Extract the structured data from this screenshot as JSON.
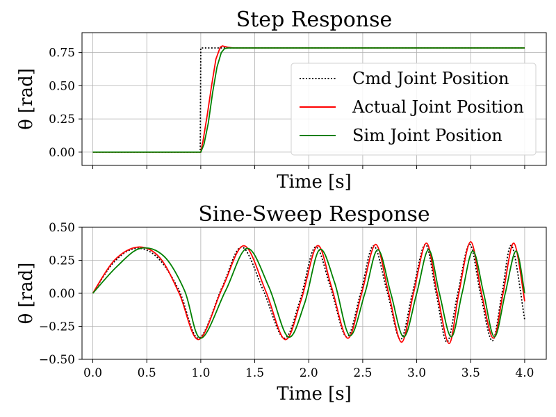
{
  "chart_data": [
    {
      "type": "line",
      "title": "Step Response",
      "xlabel": "Time [s]",
      "ylabel": "θ [rad]",
      "xlim": [
        -0.1,
        4.2
      ],
      "ylim": [
        -0.1,
        0.9
      ],
      "xticks": [
        0.0,
        0.5,
        1.0,
        1.5,
        2.0,
        2.5,
        3.0,
        3.5,
        4.0
      ],
      "xtick_labels_shown": false,
      "yticks": [
        0.0,
        0.25,
        0.5,
        0.75
      ],
      "ytick_labels": [
        "0.00",
        "0.25",
        "0.50",
        "0.75"
      ],
      "grid": true,
      "legend": "center-right",
      "series": [
        {
          "name": "Cmd Joint Position",
          "color": "#000000",
          "style": "dotted",
          "x": [
            0.0,
            0.995,
            1.0,
            4.0
          ],
          "y": [
            0.0,
            0.0,
            0.785,
            0.785
          ]
        },
        {
          "name": "Actual Joint Position",
          "color": "#ff0000",
          "style": "solid",
          "x": [
            0.0,
            1.0,
            1.02,
            1.06,
            1.1,
            1.14,
            1.18,
            1.2,
            1.25,
            1.3,
            1.4,
            4.0
          ],
          "y": [
            0.0,
            0.0,
            0.08,
            0.28,
            0.5,
            0.7,
            0.79,
            0.8,
            0.79,
            0.785,
            0.785,
            0.785
          ]
        },
        {
          "name": "Sim Joint Position",
          "color": "#008000",
          "style": "solid",
          "x": [
            0.0,
            1.0,
            1.03,
            1.07,
            1.11,
            1.15,
            1.19,
            1.22,
            1.25,
            1.3,
            4.0
          ],
          "y": [
            0.0,
            0.0,
            0.06,
            0.22,
            0.45,
            0.64,
            0.75,
            0.78,
            0.785,
            0.785,
            0.785
          ]
        }
      ]
    },
    {
      "type": "line",
      "title": "Sine-Sweep Response",
      "xlabel": "Time [s]",
      "ylabel": "θ [rad]",
      "xlim": [
        -0.1,
        4.2
      ],
      "ylim": [
        -0.5,
        0.5
      ],
      "xticks": [
        0.0,
        0.5,
        1.0,
        1.5,
        2.0,
        2.5,
        3.0,
        3.5,
        4.0
      ],
      "xtick_labels": [
        "0.0",
        "0.5",
        "1.0",
        "1.5",
        "2.0",
        "2.5",
        "3.0",
        "3.5",
        "4.0"
      ],
      "yticks": [
        -0.5,
        -0.25,
        0.0,
        0.25,
        0.5
      ],
      "ytick_labels": [
        "−0.50",
        "−0.25",
        "0.00",
        "0.25",
        "0.50"
      ],
      "grid": true,
      "legend": "none",
      "series": [
        {
          "name": "Cmd Joint Position",
          "color": "#000000",
          "style": "dotted",
          "x": [
            0.0,
            0.2,
            0.4,
            0.6,
            0.8,
            0.98,
            1.2,
            1.38,
            1.58,
            1.77,
            1.92,
            2.06,
            2.2,
            2.35,
            2.48,
            2.6,
            2.73,
            2.85,
            2.96,
            3.08,
            3.18,
            3.28,
            3.38,
            3.49,
            3.59,
            3.7,
            3.79,
            3.88,
            4.0
          ],
          "y": [
            0.0,
            0.24,
            0.34,
            0.27,
            0.02,
            -0.34,
            0.05,
            0.35,
            0.02,
            -0.34,
            -0.05,
            0.35,
            0.05,
            -0.33,
            0.0,
            0.36,
            0.0,
            -0.35,
            0.0,
            0.37,
            0.0,
            -0.37,
            0.0,
            0.37,
            0.0,
            -0.36,
            0.0,
            0.36,
            -0.2
          ]
        },
        {
          "name": "Actual Joint Position",
          "color": "#ff0000",
          "style": "solid",
          "x": [
            0.0,
            0.2,
            0.42,
            0.62,
            0.8,
            0.98,
            1.2,
            1.4,
            1.6,
            1.78,
            1.93,
            2.08,
            2.21,
            2.36,
            2.49,
            2.62,
            2.74,
            2.86,
            2.97,
            3.09,
            3.19,
            3.3,
            3.39,
            3.5,
            3.6,
            3.71,
            3.8,
            3.9,
            4.0
          ],
          "y": [
            0.0,
            0.25,
            0.35,
            0.27,
            0.0,
            -0.35,
            0.04,
            0.36,
            0.02,
            -0.35,
            -0.05,
            0.36,
            0.05,
            -0.34,
            0.0,
            0.37,
            0.0,
            -0.37,
            0.0,
            0.38,
            0.0,
            -0.38,
            0.0,
            0.39,
            0.0,
            -0.34,
            0.0,
            0.38,
            -0.06
          ]
        },
        {
          "name": "Sim Joint Position",
          "color": "#008000",
          "style": "solid",
          "x": [
            0.0,
            0.22,
            0.44,
            0.66,
            0.85,
            1.0,
            1.23,
            1.43,
            1.63,
            1.81,
            1.96,
            2.1,
            2.24,
            2.38,
            2.52,
            2.64,
            2.76,
            2.88,
            3.0,
            3.11,
            3.21,
            3.32,
            3.42,
            3.52,
            3.62,
            3.72,
            3.82,
            3.92,
            4.0
          ],
          "y": [
            0.0,
            0.2,
            0.34,
            0.28,
            0.02,
            -0.34,
            0.02,
            0.34,
            0.05,
            -0.33,
            -0.08,
            0.33,
            0.08,
            -0.32,
            0.0,
            0.33,
            0.0,
            -0.33,
            0.0,
            0.33,
            0.0,
            -0.33,
            0.0,
            0.32,
            0.0,
            -0.33,
            0.0,
            0.32,
            0.0
          ]
        }
      ]
    }
  ]
}
